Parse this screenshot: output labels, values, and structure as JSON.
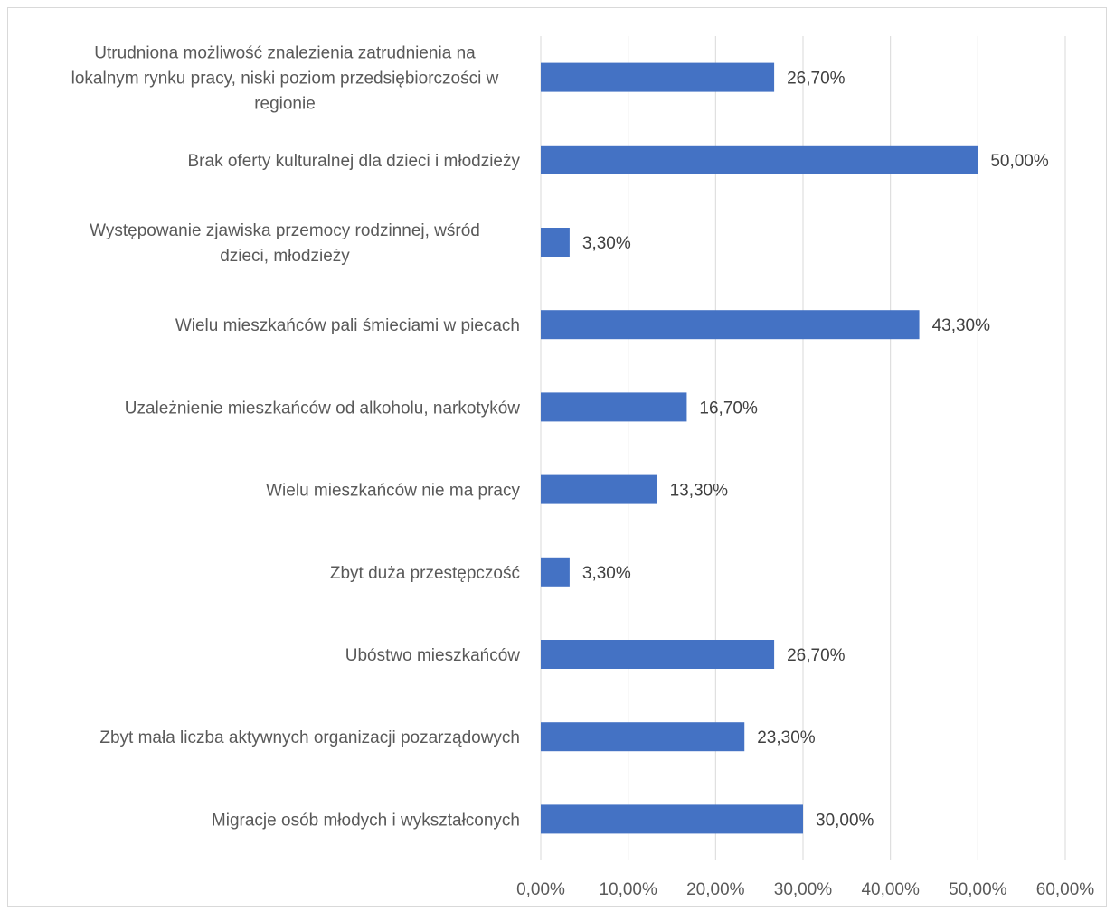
{
  "chart_data": {
    "type": "bar",
    "orientation": "horizontal",
    "title": "",
    "xlabel": "",
    "ylabel": "",
    "xlim": [
      0,
      60
    ],
    "xticks": [
      0,
      10,
      20,
      30,
      40,
      50,
      60
    ],
    "tick_labels": [
      "0,00%",
      "10,00%",
      "20,00%",
      "30,00%",
      "40,00%",
      "50,00%",
      "60,00%"
    ],
    "grid": "vertical",
    "legend": "none",
    "bar_color": "#4472c4",
    "categories": [
      "Utrudniona możliwość znalezienia zatrudnienia na lokalnym rynku pracy, niski poziom przedsiębiorczości w regionie",
      "Brak oferty kulturalnej dla dzieci i młodzieży",
      "Występowanie zjawiska przemocy rodzinnej, wśród dzieci, młodzieży",
      "Wielu mieszkańców pali śmieciami w piecach",
      "Uzależnienie mieszkańców od alkoholu, narkotyków",
      "Wielu mieszkańców nie ma pracy",
      "Zbyt duża przestępczość",
      "Ubóstwo mieszkańców",
      "Zbyt mała liczba aktywnych organizacji pozarządowych",
      "Migracje osób młodych i wykształconych"
    ],
    "category_lines": [
      [
        "Utrudniona możliwość znalezienia zatrudnienia na",
        "lokalnym rynku pracy, niski poziom przedsiębiorczości w",
        "regionie"
      ],
      [
        "Brak oferty kulturalnej dla dzieci i młodzieży"
      ],
      [
        "Występowanie zjawiska przemocy rodzinnej, wśród",
        "dzieci, młodzieży"
      ],
      [
        "Wielu mieszkańców pali śmieciami w piecach"
      ],
      [
        "Uzależnienie mieszkańców od alkoholu, narkotyków"
      ],
      [
        "Wielu mieszkańców nie ma pracy"
      ],
      [
        "Zbyt duża przestępczość"
      ],
      [
        "Ubóstwo mieszkańców"
      ],
      [
        "Zbyt mała liczba aktywnych organizacji pozarządowych"
      ],
      [
        "Migracje osób młodych i wykształconych"
      ]
    ],
    "values": [
      26.7,
      50.0,
      3.3,
      43.3,
      16.7,
      13.3,
      3.3,
      26.7,
      23.3,
      30.0
    ],
    "value_labels": [
      "26,70%",
      "50,00%",
      "3,30%",
      "43,30%",
      "16,70%",
      "13,30%",
      "3,30%",
      "26,70%",
      "23,30%",
      "30,00%"
    ]
  }
}
